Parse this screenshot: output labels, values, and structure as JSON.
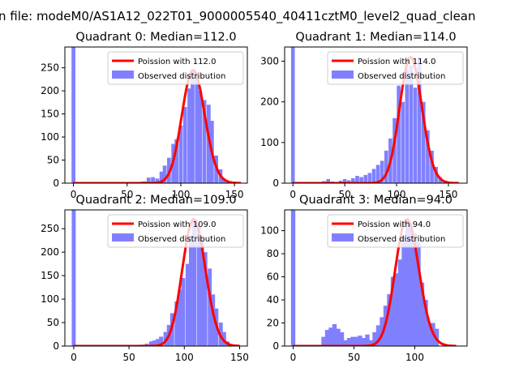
{
  "figure": {
    "suptitle": "n file: modeM0/AS1A12_022T01_9000005540_40411cztM0_level2_quad_clean"
  },
  "colors": {
    "line": "#ff0000",
    "hist": "#8080ff",
    "axis": "#000000"
  },
  "legend_labels_observed": "Observed distribution",
  "chart_data": [
    {
      "type": "bar",
      "title": "Quadrant 0: Median=112.0",
      "poisson_label": "Poission with 112.0",
      "observed_label": "Observed distribution",
      "median": 112.0,
      "xlim": [
        -8,
        162
      ],
      "ylim": [
        0,
        295
      ],
      "xticks": [
        0,
        50,
        100,
        150
      ],
      "yticks": [
        0,
        50,
        100,
        150,
        200,
        250
      ],
      "x_range": [
        0,
        156
      ],
      "legend": "upper right",
      "hist": [
        [
          0,
          295
        ],
        [
          63,
          3
        ],
        [
          66,
          4
        ],
        [
          70,
          12
        ],
        [
          74,
          13
        ],
        [
          78,
          10
        ],
        [
          82,
          25
        ],
        [
          85,
          38
        ],
        [
          89,
          55
        ],
        [
          93,
          85
        ],
        [
          96,
          95
        ],
        [
          100,
          125
        ],
        [
          104,
          165
        ],
        [
          108,
          205
        ],
        [
          111,
          245
        ],
        [
          115,
          230
        ],
        [
          118,
          200
        ],
        [
          122,
          180
        ],
        [
          126,
          170
        ],
        [
          129,
          135
        ],
        [
          133,
          60
        ],
        [
          137,
          30
        ],
        [
          140,
          10
        ],
        [
          144,
          5
        ],
        [
          148,
          3
        ]
      ]
    },
    {
      "type": "bar",
      "title": "Quadrant 1: Median=114.0",
      "poisson_label": "Poission with 114.0",
      "observed_label": "Observed distribution",
      "median": 114.0,
      "xlim": [
        -8,
        168
      ],
      "ylim": [
        0,
        335
      ],
      "xticks": [
        0,
        50,
        100,
        150
      ],
      "yticks": [
        0,
        100,
        200,
        300
      ],
      "x_range": [
        0,
        160
      ],
      "legend": "upper right",
      "hist": [
        [
          0,
          335
        ],
        [
          30,
          5
        ],
        [
          34,
          10
        ],
        [
          38,
          4
        ],
        [
          42,
          3
        ],
        [
          46,
          6
        ],
        [
          50,
          10
        ],
        [
          54,
          7
        ],
        [
          58,
          12
        ],
        [
          62,
          18
        ],
        [
          66,
          15
        ],
        [
          70,
          20
        ],
        [
          74,
          25
        ],
        [
          78,
          35
        ],
        [
          82,
          45
        ],
        [
          86,
          55
        ],
        [
          90,
          80
        ],
        [
          94,
          110
        ],
        [
          98,
          160
        ],
        [
          102,
          240
        ],
        [
          106,
          200
        ],
        [
          110,
          280
        ],
        [
          114,
          290
        ],
        [
          118,
          235
        ],
        [
          122,
          310
        ],
        [
          126,
          200
        ],
        [
          130,
          130
        ],
        [
          134,
          80
        ],
        [
          138,
          40
        ],
        [
          142,
          15
        ],
        [
          146,
          5
        ]
      ]
    },
    {
      "type": "bar",
      "title": "Quadrant 2: Median=109.0",
      "poisson_label": "Poission with 109.0",
      "observed_label": "Observed distribution",
      "median": 109.0,
      "xlim": [
        -8,
        157
      ],
      "ylim": [
        0,
        290
      ],
      "xticks": [
        0,
        50,
        100,
        150
      ],
      "yticks": [
        0,
        50,
        100,
        150,
        200,
        250
      ],
      "x_range": [
        0,
        150
      ],
      "legend": "upper right",
      "hist": [
        [
          0,
          290
        ],
        [
          62,
          3
        ],
        [
          66,
          5
        ],
        [
          70,
          10
        ],
        [
          73,
          12
        ],
        [
          76,
          15
        ],
        [
          79,
          20
        ],
        [
          83,
          30
        ],
        [
          86,
          45
        ],
        [
          89,
          70
        ],
        [
          93,
          95
        ],
        [
          96,
          120
        ],
        [
          99,
          145
        ],
        [
          103,
          175
        ],
        [
          106,
          235
        ],
        [
          109,
          270
        ],
        [
          113,
          255
        ],
        [
          116,
          230
        ],
        [
          119,
          200
        ],
        [
          123,
          165
        ],
        [
          126,
          110
        ],
        [
          129,
          80
        ],
        [
          133,
          50
        ],
        [
          136,
          30
        ],
        [
          139,
          10
        ]
      ]
    },
    {
      "type": "bar",
      "title": "Quadrant 3: Median=94.0",
      "poisson_label": "Poission with 94.0",
      "observed_label": "Observed distribution",
      "median": 94.0,
      "xlim": [
        -7,
        143
      ],
      "ylim": [
        0,
        118
      ],
      "xticks": [
        0,
        50,
        100
      ],
      "yticks": [
        0,
        20,
        40,
        60,
        80,
        100
      ],
      "x_range": [
        0,
        135
      ],
      "legend": "upper right",
      "hist": [
        [
          0,
          118
        ],
        [
          25,
          8
        ],
        [
          28,
          14
        ],
        [
          31,
          16
        ],
        [
          34,
          19
        ],
        [
          37,
          15
        ],
        [
          40,
          12
        ],
        [
          43,
          5
        ],
        [
          46,
          7
        ],
        [
          49,
          8
        ],
        [
          52,
          8
        ],
        [
          55,
          9
        ],
        [
          58,
          7
        ],
        [
          61,
          10
        ],
        [
          64,
          5
        ],
        [
          67,
          12
        ],
        [
          70,
          18
        ],
        [
          73,
          25
        ],
        [
          76,
          35
        ],
        [
          79,
          45
        ],
        [
          82,
          60
        ],
        [
          85,
          63
        ],
        [
          88,
          75
        ],
        [
          91,
          95
        ],
        [
          94,
          110
        ],
        [
          97,
          105
        ],
        [
          100,
          98
        ],
        [
          103,
          90
        ],
        [
          106,
          55
        ],
        [
          109,
          40
        ],
        [
          112,
          20
        ],
        [
          115,
          20
        ],
        [
          118,
          15
        ]
      ]
    }
  ]
}
